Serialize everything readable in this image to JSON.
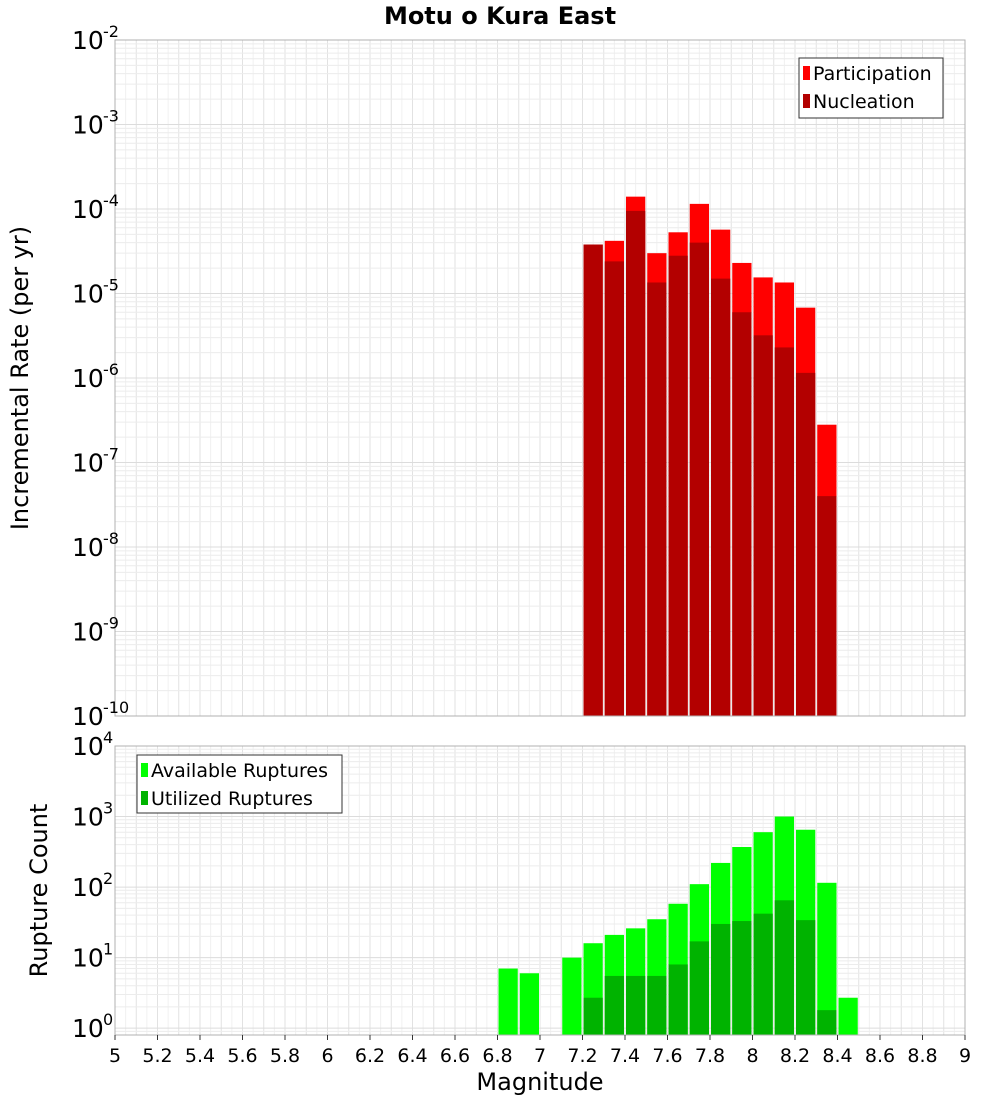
{
  "chart_data": [
    {
      "type": "bar",
      "title": "Motu o Kura East",
      "ylabel": "Incremental Rate (per yr)",
      "xlabel": "",
      "xlim": [
        5,
        9
      ],
      "ylim": [
        1e-10,
        0.01
      ],
      "yscale": "log",
      "grid": true,
      "legend_position": "top-right",
      "bar_width": 0.1,
      "series": [
        {
          "name": "Participation",
          "color": "#ff0000",
          "x": [
            7.25,
            7.35,
            7.45,
            7.55,
            7.65,
            7.75,
            7.85,
            7.95,
            8.05,
            8.15,
            8.25,
            8.35
          ],
          "values": [
            3.8e-05,
            4.2e-05,
            0.00014,
            3e-05,
            5.3e-05,
            0.000115,
            5.7e-05,
            2.3e-05,
            1.55e-05,
            1.35e-05,
            6.8e-06,
            2.8e-07
          ]
        },
        {
          "name": "Nucleation",
          "color": "#b30000",
          "x": [
            7.25,
            7.35,
            7.45,
            7.55,
            7.65,
            7.75,
            7.85,
            7.95,
            8.05,
            8.15,
            8.25,
            8.35
          ],
          "values": [
            3.8e-05,
            2.4e-05,
            9.5e-05,
            1.35e-05,
            2.8e-05,
            4e-05,
            1.5e-05,
            6e-06,
            3.2e-06,
            2.3e-06,
            1.15e-06,
            4e-08
          ]
        }
      ],
      "yticks": [
        {
          "base": "10",
          "exp": "-10"
        },
        {
          "base": "10",
          "exp": "-9"
        },
        {
          "base": "10",
          "exp": "-8"
        },
        {
          "base": "10",
          "exp": "-7"
        },
        {
          "base": "10",
          "exp": "-6"
        },
        {
          "base": "10",
          "exp": "-5"
        },
        {
          "base": "10",
          "exp": "-4"
        },
        {
          "base": "10",
          "exp": "-3"
        },
        {
          "base": "10",
          "exp": "-2"
        }
      ]
    },
    {
      "type": "bar",
      "title": "",
      "ylabel": "Rupture Count",
      "xlabel": "Magnitude",
      "xlim": [
        5,
        9
      ],
      "ylim": [
        0.8,
        10000.0
      ],
      "yscale": "log",
      "grid": true,
      "legend_position": "top-left",
      "bar_width": 0.1,
      "series": [
        {
          "name": "Available Ruptures",
          "color": "#00ff00",
          "x": [
            6.85,
            6.95,
            7.15,
            7.25,
            7.35,
            7.45,
            7.55,
            7.65,
            7.75,
            7.85,
            7.95,
            8.05,
            8.15,
            8.25,
            8.35,
            8.45
          ],
          "values": [
            7,
            6,
            10,
            16,
            21,
            26,
            35,
            58,
            110,
            220,
            370,
            600,
            1000,
            650,
            115,
            2.7
          ]
        },
        {
          "name": "Utilized Ruptures",
          "color": "#00b300",
          "x": [
            7.25,
            7.35,
            7.45,
            7.55,
            7.65,
            7.75,
            7.85,
            7.95,
            8.05,
            8.15,
            8.25,
            8.35
          ],
          "values": [
            2.7,
            5.5,
            5.5,
            5.5,
            8,
            17,
            30,
            33,
            42,
            65,
            34,
            1.8
          ]
        }
      ],
      "yticks": [
        {
          "base": "10",
          "exp": "0"
        },
        {
          "base": "10",
          "exp": "1"
        },
        {
          "base": "10",
          "exp": "2"
        },
        {
          "base": "10",
          "exp": "3"
        },
        {
          "base": "10",
          "exp": "4"
        }
      ],
      "xticks": [
        "5",
        "5.2",
        "5.4",
        "5.6",
        "5.8",
        "6",
        "6.2",
        "6.4",
        "6.6",
        "6.8",
        "7",
        "7.2",
        "7.4",
        "7.6",
        "7.8",
        "8",
        "8.2",
        "8.4",
        "8.6",
        "8.8",
        "9"
      ]
    }
  ]
}
